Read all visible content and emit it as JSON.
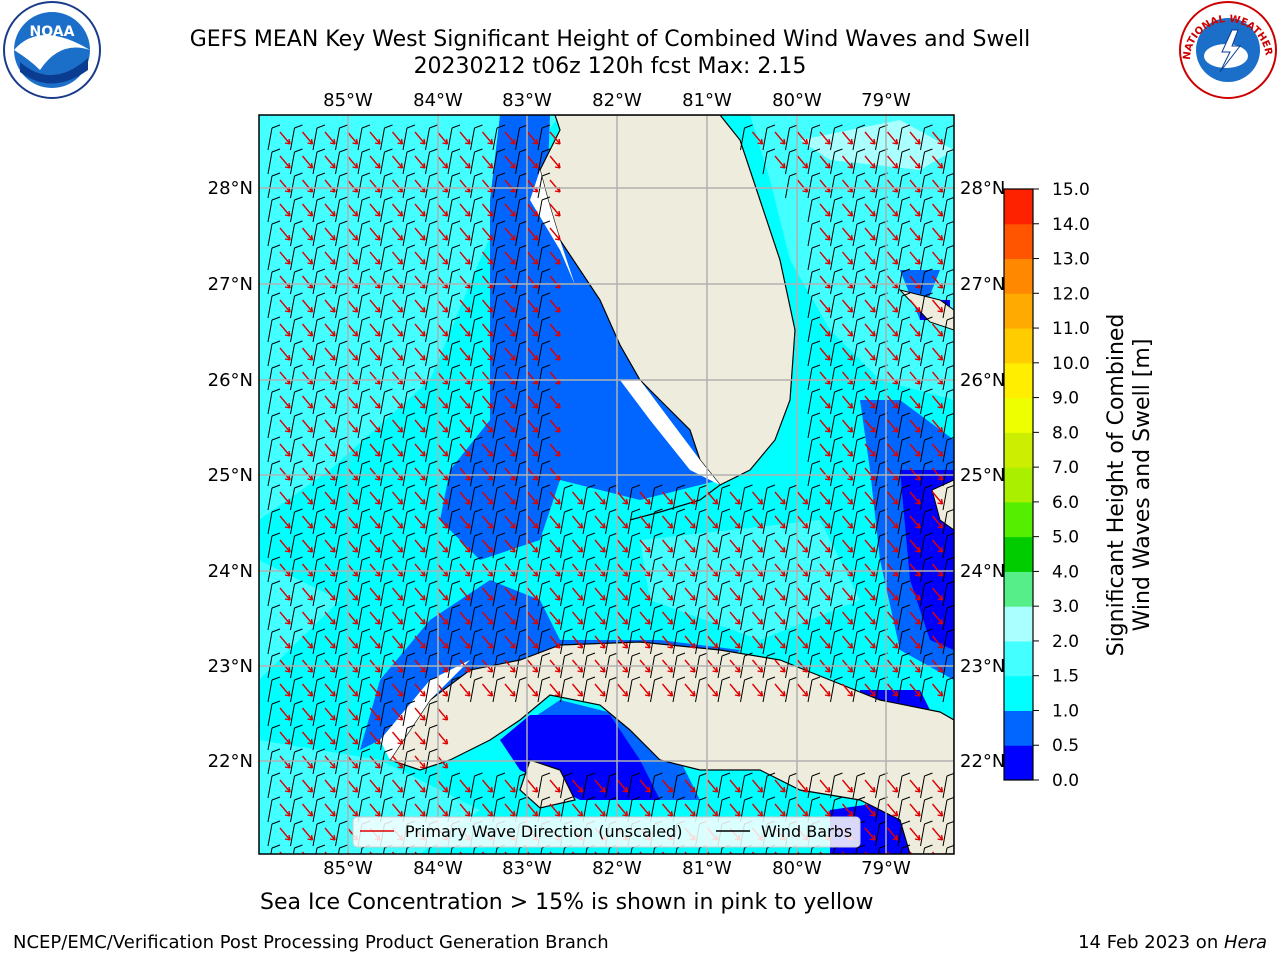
{
  "title": {
    "line1": "GEFS MEAN Key West Significant Height of Combined Wind Waves and Swell",
    "line2": "20230212 t06z 120h fcst   Max: 2.15"
  },
  "map": {
    "lon_labels": [
      "85°W",
      "84°W",
      "83°W",
      "82°W",
      "81°W",
      "80°W",
      "79°W"
    ],
    "lat_labels": [
      "28°N",
      "27°N",
      "26°N",
      "25°N",
      "24°N",
      "23°N",
      "22°N"
    ],
    "regions": [
      "Florida",
      "Cuba",
      "Bahamas"
    ]
  },
  "legend": {
    "wave_direction": "Primary Wave Direction (unscaled)",
    "wind_barbs": "Wind Barbs"
  },
  "colorbar": {
    "label_line1": "Significant Height of Combined",
    "label_line2": "Wind Waves and Swell [m]",
    "ticks": [
      "0.0",
      "0.5",
      "1.0",
      "1.5",
      "2.0",
      "3.0",
      "4.0",
      "5.0",
      "6.0",
      "7.0",
      "8.0",
      "9.0",
      "10.0",
      "11.0",
      "12.0",
      "13.0",
      "14.0",
      "15.0"
    ],
    "colors": [
      "#0000ff",
      "#0066ff",
      "#00ffff",
      "#44ffff",
      "#aaffff",
      "#55ee88",
      "#00cc00",
      "#55ee00",
      "#aaee00",
      "#ccee00",
      "#eeff00",
      "#ffee00",
      "#ffcc00",
      "#ffaa00",
      "#ff8800",
      "#ff5500",
      "#ff2200"
    ]
  },
  "colors": {
    "land": "#eeecdc",
    "wave_arrow": "#e00000",
    "wind_barb": "#000000",
    "grid": "#b0b0b0"
  },
  "subtitle": "Sea Ice Concentration > 15% is shown in pink to yellow",
  "footer": {
    "left": "NCEP/EMC/Verification Post Processing Product Generation Branch",
    "right_date": "14 Feb 2023 on ",
    "right_host": "Hera"
  },
  "logos": {
    "noaa": "NOAA",
    "nws": "NATIONAL WEATHER SERVICE"
  }
}
